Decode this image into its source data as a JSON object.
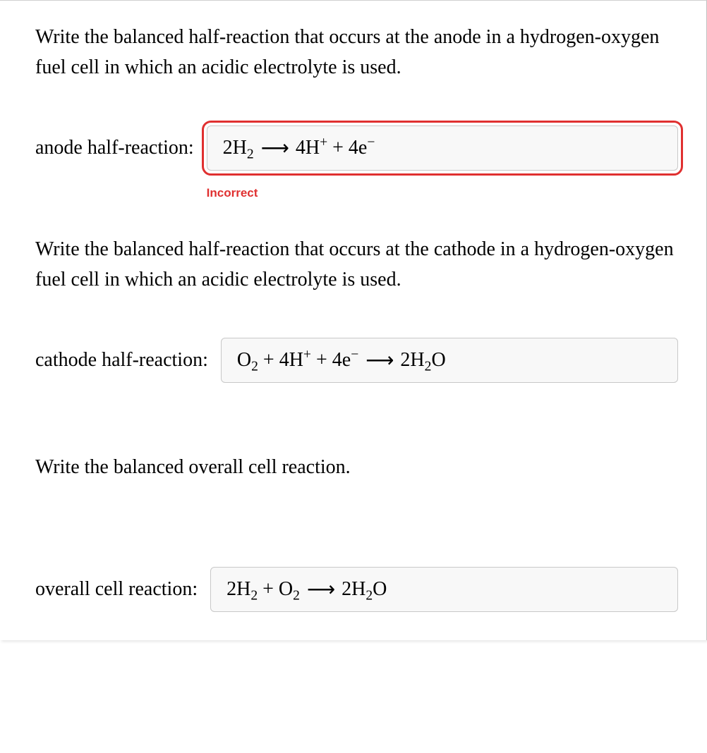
{
  "page": {
    "background_color": "#ffffff",
    "text_color": "#000000",
    "font_family": "Georgia, Times New Roman, serif",
    "body_fontsize_pt": 21
  },
  "questions": [
    {
      "prompt": "Write the balanced half-reaction that occurs at the anode in a hydrogen-oxygen fuel cell in which an acidic electrolyte is used.",
      "label": "anode half-reaction:",
      "answer_box": {
        "reactants": "2H₂",
        "products": "4H⁺ + 4e⁻",
        "arrow": "⟶",
        "border_color": "#c8c8c8",
        "background_color": "#f8f8f8"
      },
      "status": {
        "text": "Incorrect",
        "color": "#e03030",
        "outline_color": "#e03030",
        "is_incorrect": true
      }
    },
    {
      "prompt": "Write the balanced half-reaction that occurs at the cathode in a hydrogen-oxygen fuel cell in which an acidic electrolyte is used.",
      "label": "cathode half-reaction:",
      "answer_box": {
        "reactants": "O₂ + 4H⁺ + 4e⁻",
        "products": "2H₂O",
        "arrow": "⟶",
        "border_color": "#c8c8c8",
        "background_color": "#f8f8f8"
      },
      "status": null
    },
    {
      "prompt": "Write the balanced overall cell reaction.",
      "label": "overall cell reaction:",
      "answer_box": {
        "reactants": "2H₂ + O₂",
        "products": "2H₂O",
        "arrow": "⟶",
        "border_color": "#c8c8c8",
        "background_color": "#f8f8f8"
      },
      "status": null
    }
  ]
}
